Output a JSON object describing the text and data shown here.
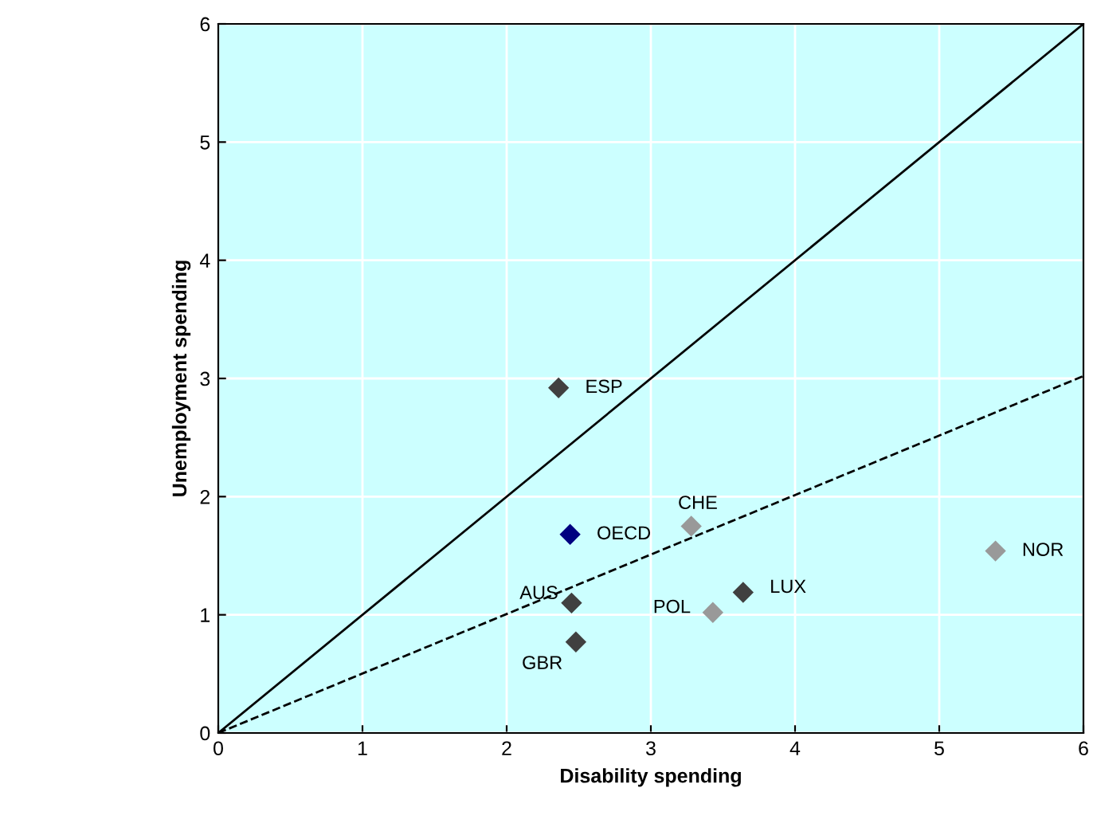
{
  "chart_data": {
    "type": "scatter",
    "xlabel": "Disability spending",
    "ylabel": "Unemployment spending",
    "xlim": [
      0,
      6
    ],
    "ylim": [
      0,
      6
    ],
    "xticks": [
      0,
      1,
      2,
      3,
      4,
      5,
      6
    ],
    "yticks": [
      0,
      1,
      2,
      3,
      4,
      5,
      6
    ],
    "grid": true,
    "marker": "diamond",
    "series": [
      {
        "x": [
          2.36,
          2.44,
          3.28,
          5.39,
          3.64,
          3.43,
          2.45,
          2.48
        ],
        "values": [
          2.92,
          1.68,
          1.75,
          1.54,
          1.19,
          1.02,
          1.1,
          0.77
        ],
        "colors": [
          "#404040",
          "#000080",
          "#999999",
          "#999999",
          "#404040",
          "#999999",
          "#404040",
          "#404040"
        ]
      },
      {
        "type": "line",
        "x": [
          0,
          6
        ],
        "values": [
          0,
          6
        ],
        "color": "#000000",
        "line_style": "solid",
        "marker": "none"
      },
      {
        "type": "line",
        "x": [
          0,
          6
        ],
        "values": [
          0,
          3.02
        ],
        "color": "#000000",
        "line_style": "dashed",
        "marker": "none"
      }
    ],
    "annotations": [
      {
        "text": "ESP",
        "x": 2.36,
        "y": 2.92
      },
      {
        "text": "OECD",
        "x": 2.44,
        "y": 1.68
      },
      {
        "text": "CHE",
        "x": 3.28,
        "y": 1.75
      },
      {
        "text": "NOR",
        "x": 5.39,
        "y": 1.54
      },
      {
        "text": "LUX",
        "x": 3.64,
        "y": 1.19
      },
      {
        "text": "POL",
        "x": 3.43,
        "y": 1.02
      },
      {
        "text": "AUS",
        "x": 2.45,
        "y": 1.1
      },
      {
        "text": "GBR",
        "x": 2.48,
        "y": 0.77
      }
    ]
  }
}
